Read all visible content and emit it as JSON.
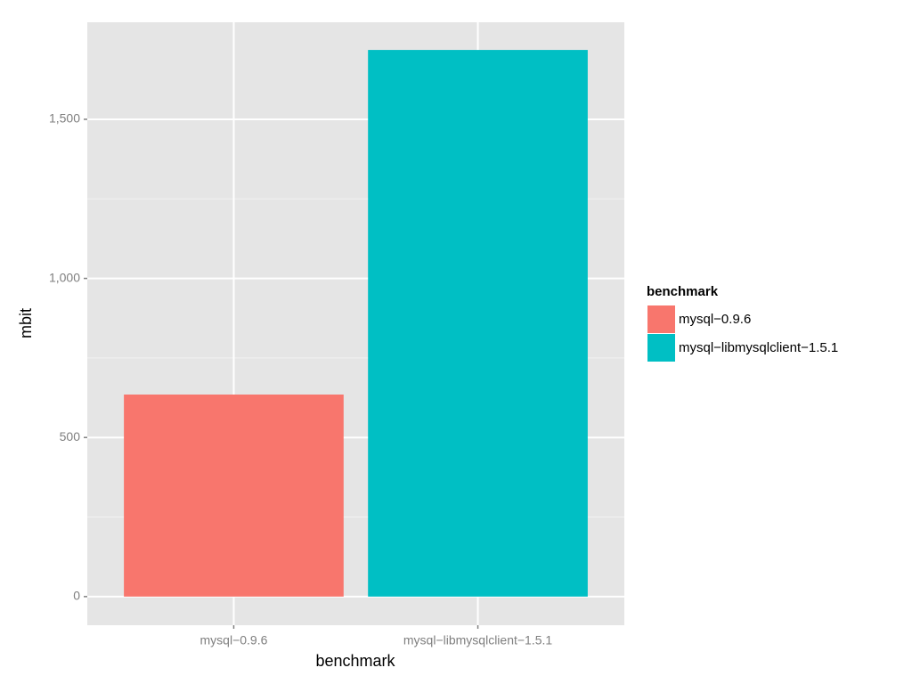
{
  "chart_data": {
    "type": "bar",
    "x_label": "benchmark",
    "y_label": "mbit",
    "categories": [
      "mysql−0.9.6",
      "mysql−libmysqlclient−1.5.1"
    ],
    "values": [
      635,
      1718
    ],
    "colors": [
      "#F8766D",
      "#00BFC4"
    ],
    "ylim": [
      -90,
      1805
    ],
    "yticks": [
      0,
      500,
      {
        "value": 1000,
        "label": "1,000"
      },
      {
        "value": 1500,
        "label": "1,500"
      }
    ],
    "minor_yticks": [
      250,
      750,
      1250
    ],
    "grid": true,
    "legend": {
      "title": "benchmark",
      "position": "right"
    }
  }
}
